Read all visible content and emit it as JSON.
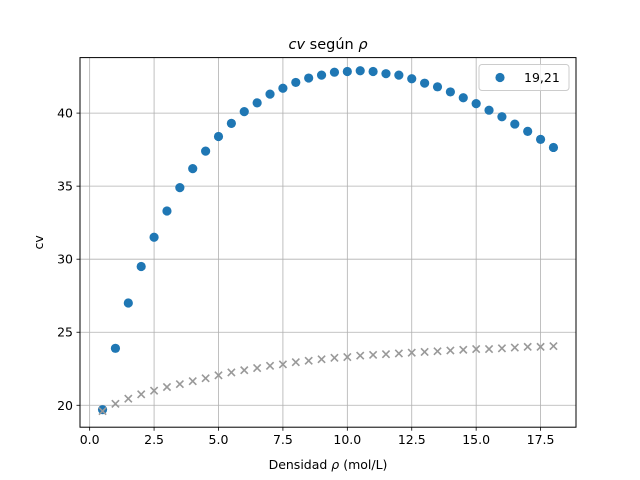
{
  "chart_data": {
    "type": "scatter",
    "title_parts": [
      {
        "text": "cv",
        "italic": true
      },
      {
        "text": " según ",
        "italic": false
      },
      {
        "text": "ρ",
        "italic": true
      }
    ],
    "xlabel_parts": [
      {
        "text": "Densidad ",
        "italic": false
      },
      {
        "text": "ρ",
        "italic": true
      },
      {
        "text": " (mol/L)",
        "italic": false
      }
    ],
    "ylabel": "cv",
    "xlim": [
      -0.375,
      18.875
    ],
    "ylim": [
      18.5,
      43.8
    ],
    "xticks": [
      0,
      2.5,
      5,
      7.5,
      10,
      12.5,
      15,
      17.5
    ],
    "xtick_labels": [
      "0.0",
      "2.5",
      "5.0",
      "7.5",
      "10.0",
      "12.5",
      "15.0",
      "17.5"
    ],
    "yticks": [
      20,
      25,
      30,
      35,
      40
    ],
    "ytick_labels": [
      "20",
      "25",
      "30",
      "35",
      "40"
    ],
    "grid": true,
    "legend_position": "top-right",
    "x": [
      0.5,
      1.0,
      1.5,
      2.0,
      2.5,
      3.0,
      3.5,
      4.0,
      4.5,
      5.0,
      5.5,
      6.0,
      6.5,
      7.0,
      7.5,
      8.0,
      8.5,
      9.0,
      9.5,
      10.0,
      10.5,
      11.0,
      11.5,
      12.0,
      12.5,
      13.0,
      13.5,
      14.0,
      14.5,
      15.0,
      15.5,
      16.0,
      16.5,
      17.0,
      17.5,
      18.0
    ],
    "series": [
      {
        "name": "19,21",
        "marker": "circle",
        "color": "#1f77b4",
        "values": [
          19.7,
          23.9,
          27.0,
          29.5,
          31.5,
          33.3,
          34.9,
          36.2,
          37.4,
          38.4,
          39.3,
          40.1,
          40.7,
          41.3,
          41.7,
          42.1,
          42.4,
          42.6,
          42.8,
          42.85,
          42.9,
          42.85,
          42.7,
          42.6,
          42.35,
          42.05,
          41.8,
          41.45,
          41.05,
          40.65,
          40.2,
          39.75,
          39.25,
          38.75,
          38.2,
          37.65
        ]
      },
      {
        "marker": "x",
        "color": "#999999",
        "values": [
          19.6,
          20.1,
          20.45,
          20.75,
          21.0,
          21.25,
          21.45,
          21.65,
          21.85,
          22.05,
          22.25,
          22.4,
          22.55,
          22.7,
          22.8,
          22.95,
          23.05,
          23.15,
          23.25,
          23.3,
          23.4,
          23.45,
          23.5,
          23.55,
          23.6,
          23.65,
          23.7,
          23.75,
          23.8,
          23.85,
          23.85,
          23.9,
          23.95,
          24.0,
          24.0,
          24.05
        ]
      }
    ]
  }
}
